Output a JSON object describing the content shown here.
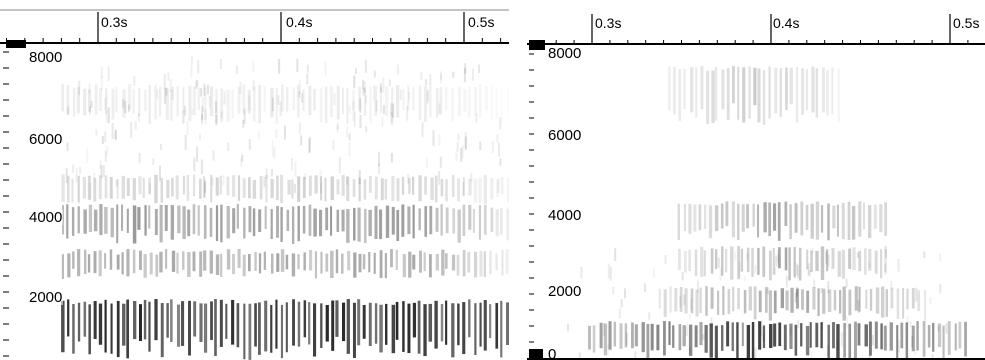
{
  "panels": [
    {
      "time_labels": [
        "0.3s",
        "0.4s",
        "0.5s"
      ],
      "freq_labels": [
        "8000",
        "6000",
        "4000",
        "2000"
      ]
    },
    {
      "time_labels": [
        "0.3s",
        "0.4s",
        "0.5s"
      ],
      "freq_labels": [
        "8000",
        "6000",
        "4000",
        "2000",
        "0"
      ]
    }
  ]
}
